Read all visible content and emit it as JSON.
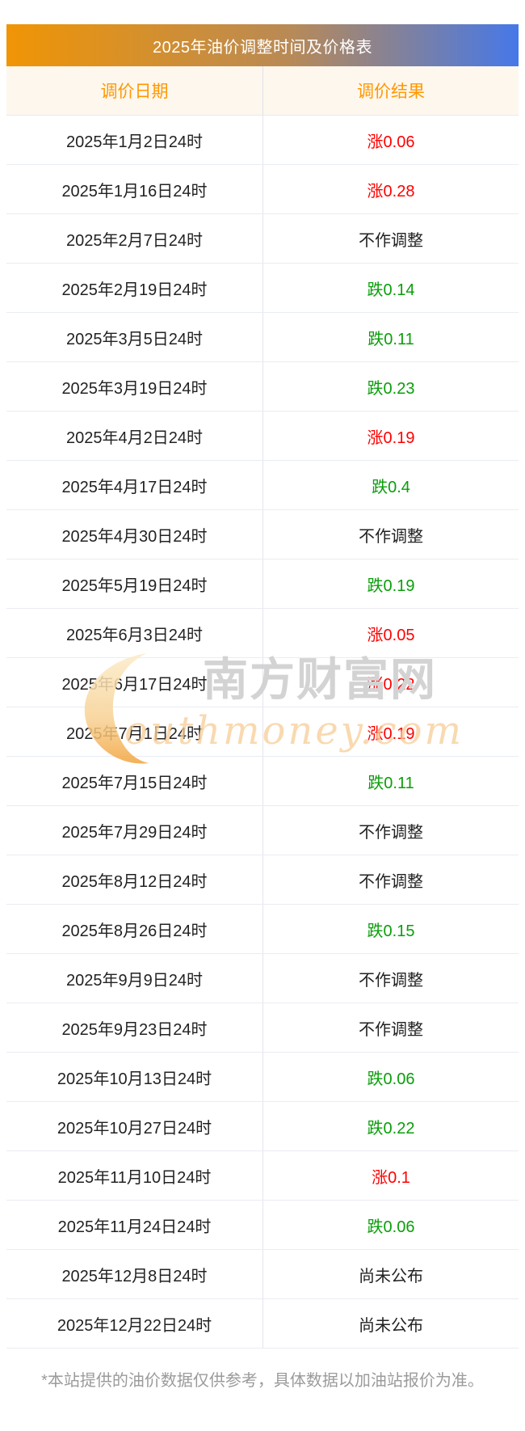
{
  "title": "2025年油价调整时间及价格表",
  "columns": [
    "调价日期",
    "调价结果"
  ],
  "rows": [
    {
      "date": "2025年1月2日24时",
      "result": "涨0.06",
      "direction": "up"
    },
    {
      "date": "2025年1月16日24时",
      "result": "涨0.28",
      "direction": "up"
    },
    {
      "date": "2025年2月7日24时",
      "result": "不作调整",
      "direction": "none"
    },
    {
      "date": "2025年2月19日24时",
      "result": "跌0.14",
      "direction": "down"
    },
    {
      "date": "2025年3月5日24时",
      "result": "跌0.11",
      "direction": "down"
    },
    {
      "date": "2025年3月19日24时",
      "result": "跌0.23",
      "direction": "down"
    },
    {
      "date": "2025年4月2日24时",
      "result": "涨0.19",
      "direction": "up"
    },
    {
      "date": "2025年4月17日24时",
      "result": "跌0.4",
      "direction": "down"
    },
    {
      "date": "2025年4月30日24时",
      "result": "不作调整",
      "direction": "none"
    },
    {
      "date": "2025年5月19日24时",
      "result": "跌0.19",
      "direction": "down"
    },
    {
      "date": "2025年6月3日24时",
      "result": "涨0.05",
      "direction": "up"
    },
    {
      "date": "2025年6月17日24时",
      "result": "涨0.22",
      "direction": "up"
    },
    {
      "date": "2025年7月1日24时",
      "result": "涨0.19",
      "direction": "up"
    },
    {
      "date": "2025年7月15日24时",
      "result": "跌0.11",
      "direction": "down"
    },
    {
      "date": "2025年7月29日24时",
      "result": "不作调整",
      "direction": "none"
    },
    {
      "date": "2025年8月12日24时",
      "result": "不作调整",
      "direction": "none"
    },
    {
      "date": "2025年8月26日24时",
      "result": "跌0.15",
      "direction": "down"
    },
    {
      "date": "2025年9月9日24时",
      "result": "不作调整",
      "direction": "none"
    },
    {
      "date": "2025年9月23日24时",
      "result": "不作调整",
      "direction": "none"
    },
    {
      "date": "2025年10月13日24时",
      "result": "跌0.06",
      "direction": "down"
    },
    {
      "date": "2025年10月27日24时",
      "result": "跌0.22",
      "direction": "down"
    },
    {
      "date": "2025年11月10日24时",
      "result": "涨0.1",
      "direction": "up"
    },
    {
      "date": "2025年11月24日24时",
      "result": "跌0.06",
      "direction": "down"
    },
    {
      "date": "2025年12月8日24时",
      "result": "尚未公布",
      "direction": "pending"
    },
    {
      "date": "2025年12月22日24时",
      "result": "尚未公布",
      "direction": "pending"
    }
  ],
  "colors": {
    "up": "#fe0000",
    "down": "#0a9e0a",
    "none": "#222222",
    "pending": "#222222",
    "title_gradient_left": "#f09505",
    "title_gradient_right": "#4678e8",
    "header_bg": "#fdf7ee",
    "header_text": "#ff9800"
  },
  "watermark": {
    "cjk": "南方财富网",
    "script": "outhmoney.com"
  },
  "footer_note": "*本站提供的油价数据仅供参考，具体数据以加油站报价为准。",
  "chart_data": {
    "type": "table",
    "title": "2025年油价调整时间及价格表",
    "columns": [
      "调价日期",
      "调价结果"
    ],
    "rows": [
      [
        "2025年1月2日24时",
        "涨0.06"
      ],
      [
        "2025年1月16日24时",
        "涨0.28"
      ],
      [
        "2025年2月7日24时",
        "不作调整"
      ],
      [
        "2025年2月19日24时",
        "跌0.14"
      ],
      [
        "2025年3月5日24时",
        "跌0.11"
      ],
      [
        "2025年3月19日24时",
        "跌0.23"
      ],
      [
        "2025年4月2日24时",
        "涨0.19"
      ],
      [
        "2025年4月17日24时",
        "跌0.4"
      ],
      [
        "2025年4月30日24时",
        "不作调整"
      ],
      [
        "2025年5月19日24时",
        "跌0.19"
      ],
      [
        "2025年6月3日24时",
        "涨0.05"
      ],
      [
        "2025年6月17日24时",
        "涨0.22"
      ],
      [
        "2025年7月1日24时",
        "涨0.19"
      ],
      [
        "2025年7月15日24时",
        "跌0.11"
      ],
      [
        "2025年7月29日24时",
        "不作调整"
      ],
      [
        "2025年8月12日24时",
        "不作调整"
      ],
      [
        "2025年8月26日24时",
        "跌0.15"
      ],
      [
        "2025年9月9日24时",
        "不作调整"
      ],
      [
        "2025年9月23日24时",
        "不作调整"
      ],
      [
        "2025年10月13日24时",
        "跌0.06"
      ],
      [
        "2025年10月27日24时",
        "跌0.22"
      ],
      [
        "2025年11月10日24时",
        "涨0.1"
      ],
      [
        "2025年11月24日24时",
        "跌0.06"
      ],
      [
        "2025年12月8日24时",
        "尚未公布"
      ],
      [
        "2025年12月22日24时",
        "尚未公布"
      ]
    ]
  }
}
